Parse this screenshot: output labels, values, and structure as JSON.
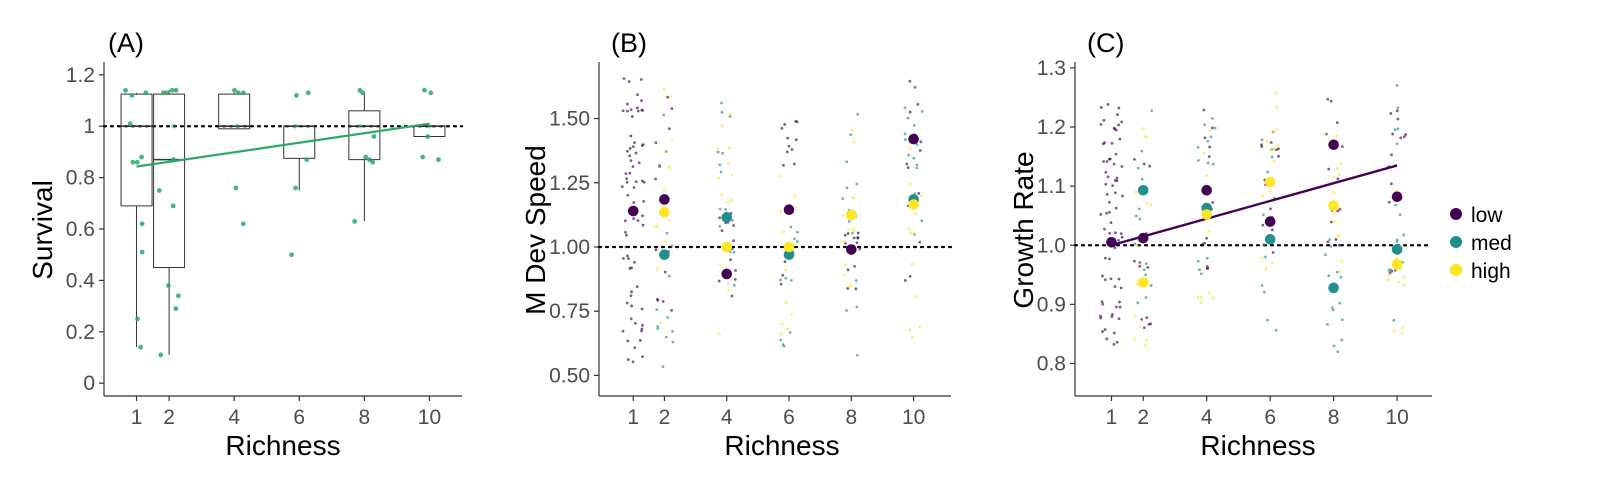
{
  "colors": {
    "low": "#440154",
    "med": "#21908C",
    "high": "#FDE725",
    "survival": "#2BA86B",
    "axis": "#333333"
  },
  "legend": [
    {
      "key": "low",
      "label": "low"
    },
    {
      "key": "med",
      "label": "med"
    },
    {
      "key": "high",
      "label": "high"
    }
  ],
  "chart_data": [
    {
      "type": "box",
      "panel_label": "(A)",
      "xlabel": "Richness",
      "ylabel": "Survival",
      "ylim": [
        -0.05,
        1.25
      ],
      "xticks": [
        1,
        2,
        4,
        6,
        8,
        10
      ],
      "yticks": [
        {
          "value": 0,
          "label": "0"
        },
        {
          "value": 0.2,
          "label": "0.2"
        },
        {
          "value": 0.4,
          "label": "0.4"
        },
        {
          "value": 0.6,
          "label": "0.6"
        },
        {
          "value": 0.8,
          "label": "0.8"
        },
        {
          "value": 1,
          "label": "1"
        },
        {
          "value": 1.2,
          "label": "1.2"
        }
      ],
      "reference_line": 1,
      "boxes": [
        {
          "x": 1,
          "q1": 0.69,
          "median": 1.0,
          "q3": 1.125,
          "whisker_low": 0.14,
          "whisker_high": 1.13
        },
        {
          "x": 2,
          "q1": 0.45,
          "median": 0.87,
          "q3": 1.125,
          "whisker_low": 0.11,
          "whisker_high": 1.14
        },
        {
          "x": 4,
          "q1": 0.99,
          "median": 1.0,
          "q3": 1.125,
          "whisker_low": 0.99,
          "whisker_high": 1.13
        },
        {
          "x": 6,
          "q1": 0.875,
          "median": 1.0,
          "q3": 1.0,
          "whisker_low": 0.75,
          "whisker_high": 1.0
        },
        {
          "x": 8,
          "q1": 0.87,
          "median": 1.0,
          "q3": 1.06,
          "whisker_low": 0.63,
          "whisker_high": 1.13
        },
        {
          "x": 10,
          "q1": 0.96,
          "median": 1.0,
          "q3": 1.0,
          "whisker_low": 0.96,
          "whisker_high": 1.0
        }
      ],
      "points": [
        [
          1,
          1.14
        ],
        [
          1,
          1.13
        ],
        [
          1,
          1.12
        ],
        [
          1,
          1.01
        ],
        [
          1,
          0.88
        ],
        [
          1,
          0.86
        ],
        [
          1,
          0.86
        ],
        [
          1,
          0.62
        ],
        [
          1,
          0.51
        ],
        [
          1,
          0.25
        ],
        [
          1,
          0.14
        ],
        [
          2,
          1.14
        ],
        [
          2,
          1.14
        ],
        [
          2,
          1.13
        ],
        [
          2,
          1.13
        ],
        [
          2,
          1.0
        ],
        [
          2,
          0.87
        ],
        [
          2,
          0.75
        ],
        [
          2,
          0.69
        ],
        [
          2,
          0.38
        ],
        [
          2,
          0.34
        ],
        [
          2,
          0.29
        ],
        [
          2,
          0.11
        ],
        [
          4,
          1.14
        ],
        [
          4,
          1.13
        ],
        [
          4,
          1.13
        ],
        [
          4,
          1.0
        ],
        [
          4,
          0.76
        ],
        [
          4,
          0.62
        ],
        [
          6,
          1.13
        ],
        [
          6,
          1.12
        ],
        [
          6,
          1.0
        ],
        [
          6,
          0.87
        ],
        [
          6,
          0.76
        ],
        [
          6,
          0.5
        ],
        [
          8,
          1.14
        ],
        [
          8,
          1.13
        ],
        [
          8,
          1.0
        ],
        [
          8,
          0.96
        ],
        [
          8,
          0.88
        ],
        [
          8,
          0.87
        ],
        [
          8,
          0.86
        ],
        [
          8,
          0.63
        ],
        [
          10,
          1.14
        ],
        [
          10,
          1.13
        ],
        [
          10,
          1.0
        ],
        [
          10,
          0.96
        ],
        [
          10,
          0.88
        ],
        [
          10,
          0.87
        ]
      ],
      "trend": {
        "x": [
          1,
          10
        ],
        "y": [
          0.843,
          1.01
        ]
      }
    },
    {
      "type": "scatter",
      "panel_label": "(B)",
      "xlabel": "Richness",
      "ylabel": "M Dev Speed",
      "ylim": [
        0.42,
        1.72
      ],
      "xticks": [
        1,
        2,
        4,
        6,
        8,
        10
      ],
      "yticks": [
        {
          "value": 0.5,
          "label": "0.50"
        },
        {
          "value": 0.75,
          "label": "0.75"
        },
        {
          "value": 1.0,
          "label": "1.00"
        },
        {
          "value": 1.25,
          "label": "1.25"
        },
        {
          "value": 1.5,
          "label": "1.50"
        }
      ],
      "reference_line": 1.0,
      "means": [
        {
          "group": "low",
          "x": [
            1,
            2,
            4,
            6,
            8,
            10
          ],
          "y": [
            1.14,
            1.185,
            0.895,
            1.145,
            0.99,
            1.42
          ]
        },
        {
          "group": "med",
          "x": [
            2,
            4,
            6,
            10
          ],
          "y": [
            0.97,
            1.115,
            0.97,
            1.185
          ]
        },
        {
          "group": "high",
          "x": [
            2,
            4,
            6,
            8,
            10
          ],
          "y": [
            1.135,
            1.0,
            1.0,
            1.125,
            1.165
          ]
        }
      ],
      "raw_ranges": [
        {
          "group": "low",
          "x": 1,
          "min": 0.55,
          "max": 1.66
        },
        {
          "group": "low",
          "x": 2,
          "min": 0.72,
          "max": 1.62
        },
        {
          "group": "med",
          "x": 2,
          "min": 0.47,
          "max": 1.52
        },
        {
          "group": "high",
          "x": 2,
          "min": 0.7,
          "max": 1.62
        },
        {
          "group": "low",
          "x": 4,
          "min": 0.72,
          "max": 1.15
        },
        {
          "group": "med",
          "x": 4,
          "min": 0.85,
          "max": 1.6
        },
        {
          "group": "high",
          "x": 4,
          "min": 0.62,
          "max": 1.56
        },
        {
          "group": "low",
          "x": 6,
          "min": 0.8,
          "max": 1.52
        },
        {
          "group": "med",
          "x": 6,
          "min": 0.58,
          "max": 1.2
        },
        {
          "group": "high",
          "x": 6,
          "min": 0.66,
          "max": 1.28
        },
        {
          "group": "low",
          "x": 8,
          "min": 0.75,
          "max": 1.1
        },
        {
          "group": "med",
          "x": 8,
          "min": 0.53,
          "max": 1.67
        },
        {
          "group": "high",
          "x": 8,
          "min": 0.78,
          "max": 1.5
        },
        {
          "group": "low",
          "x": 10,
          "min": 0.78,
          "max": 1.65
        },
        {
          "group": "med",
          "x": 10,
          "min": 0.86,
          "max": 1.65
        },
        {
          "group": "high",
          "x": 10,
          "min": 0.6,
          "max": 1.65
        }
      ]
    },
    {
      "type": "scatter",
      "panel_label": "(C)",
      "xlabel": "Richness",
      "ylabel": "Growth Rate",
      "ylim": [
        0.745,
        1.31
      ],
      "xticks": [
        1,
        2,
        4,
        6,
        8,
        10
      ],
      "yticks": [
        {
          "value": 0.8,
          "label": "0.8"
        },
        {
          "value": 0.9,
          "label": "0.9"
        },
        {
          "value": 1.0,
          "label": "1.0"
        },
        {
          "value": 1.1,
          "label": "1.1"
        },
        {
          "value": 1.2,
          "label": "1.2"
        },
        {
          "value": 1.3,
          "label": "1.3"
        }
      ],
      "reference_line": 1.0,
      "means": [
        {
          "group": "low",
          "x": [
            1,
            2,
            4,
            6,
            8,
            10
          ],
          "y": [
            1.005,
            1.012,
            1.093,
            1.04,
            1.17,
            1.082
          ]
        },
        {
          "group": "med",
          "x": [
            2,
            4,
            6,
            8,
            10
          ],
          "y": [
            1.093,
            1.063,
            1.01,
            0.928,
            0.993
          ]
        },
        {
          "group": "high",
          "x": [
            2,
            4,
            6,
            8,
            10
          ],
          "y": [
            0.937,
            1.052,
            1.107,
            1.067,
            0.968
          ]
        }
      ],
      "raw_ranges": [
        {
          "group": "low",
          "x": 1,
          "min": 0.83,
          "max": 1.24
        },
        {
          "group": "low",
          "x": 2,
          "min": 0.85,
          "max": 1.16
        },
        {
          "group": "med",
          "x": 2,
          "min": 0.9,
          "max": 1.27
        },
        {
          "group": "high",
          "x": 2,
          "min": 0.775,
          "max": 1.21
        },
        {
          "group": "low",
          "x": 4,
          "min": 0.96,
          "max": 1.24
        },
        {
          "group": "med",
          "x": 4,
          "min": 0.95,
          "max": 1.23
        },
        {
          "group": "high",
          "x": 4,
          "min": 0.9,
          "max": 1.2
        },
        {
          "group": "low",
          "x": 6,
          "min": 0.97,
          "max": 1.19
        },
        {
          "group": "med",
          "x": 6,
          "min": 0.83,
          "max": 1.21
        },
        {
          "group": "high",
          "x": 6,
          "min": 0.93,
          "max": 1.29
        },
        {
          "group": "low",
          "x": 8,
          "min": 1.0,
          "max": 1.28
        },
        {
          "group": "med",
          "x": 8,
          "min": 0.82,
          "max": 1.02
        },
        {
          "group": "high",
          "x": 8,
          "min": 0.93,
          "max": 1.2
        },
        {
          "group": "low",
          "x": 10,
          "min": 0.94,
          "max": 1.23
        },
        {
          "group": "med",
          "x": 10,
          "min": 0.86,
          "max": 1.28
        },
        {
          "group": "high",
          "x": 10,
          "min": 0.82,
          "max": 1.1
        }
      ],
      "trend": {
        "group": "low",
        "x": [
          1,
          10
        ],
        "y": [
          1.0,
          1.135
        ]
      }
    }
  ]
}
